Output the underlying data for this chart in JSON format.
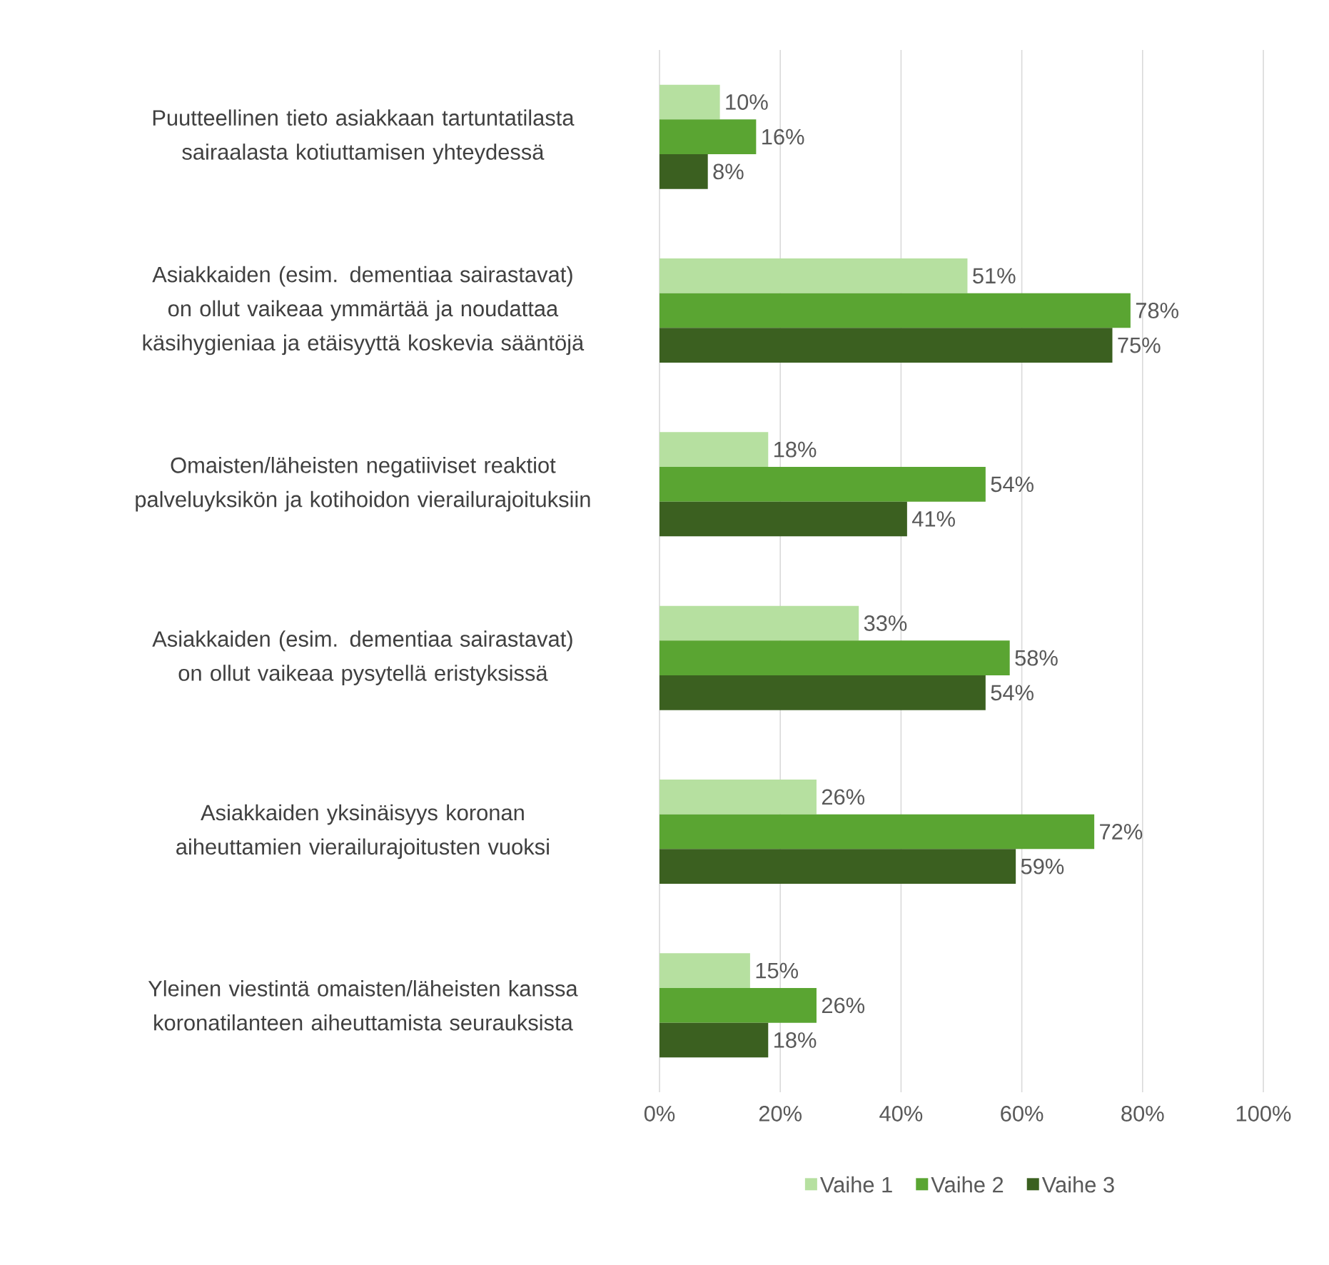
{
  "chart_data": {
    "type": "bar",
    "orientation": "horizontal",
    "categories": [
      "Puutteellinen tieto asiakkaan tartuntatilasta sairaalasta kotiuttamisen yhteydessä",
      "Asiakkaiden (esim. dementiaa sairastavat) on ollut vaikeaa ymmärtää ja noudattaa käsihygieniaa ja etäisyyttä koskevia sääntöjä",
      "Omaisten/läheisten negatiiviset reaktiot palveluyksikön ja kotihoidon vierailurajoituksiin",
      "Asiakkaiden (esim. dementiaa sairastavat) on ollut vaikeaa pysytellä eristyksissä",
      "Asiakkaiden yksinäisyys koronan aiheuttamien vierailurajoitusten vuoksi",
      "Yleinen viestintä omaisten/läheisten kanssa koronatilanteen aiheuttamista seurauksista"
    ],
    "series": [
      {
        "name": "Vaihe 1",
        "color": "#b6e0a0",
        "values": [
          10,
          51,
          18,
          33,
          26,
          15
        ],
        "value_labels": [
          "10%",
          "51%",
          "18%",
          "33%",
          "26%",
          "15%"
        ]
      },
      {
        "name": "Vaihe 2",
        "color": "#5aa532",
        "values": [
          16,
          78,
          54,
          58,
          72,
          26
        ],
        "value_labels": [
          "16%",
          "78%",
          "54%",
          "58%",
          "72%",
          "26%"
        ]
      },
      {
        "name": "Vaihe 3",
        "color": "#3b6020",
        "values": [
          8,
          75,
          41,
          54,
          59,
          18
        ],
        "value_labels": [
          "8%",
          "75%",
          "41%",
          "54%",
          "59%",
          "18%"
        ]
      }
    ],
    "xlim": [
      0,
      100
    ],
    "xticks": [
      {
        "value": 0,
        "label": "0%"
      },
      {
        "value": 20,
        "label": "20%"
      },
      {
        "value": 40,
        "label": "40%"
      },
      {
        "value": 60,
        "label": "60%"
      },
      {
        "value": 80,
        "label": "80%"
      },
      {
        "value": 100,
        "label": "100%"
      }
    ],
    "grid": "x",
    "legend": "bottom"
  }
}
